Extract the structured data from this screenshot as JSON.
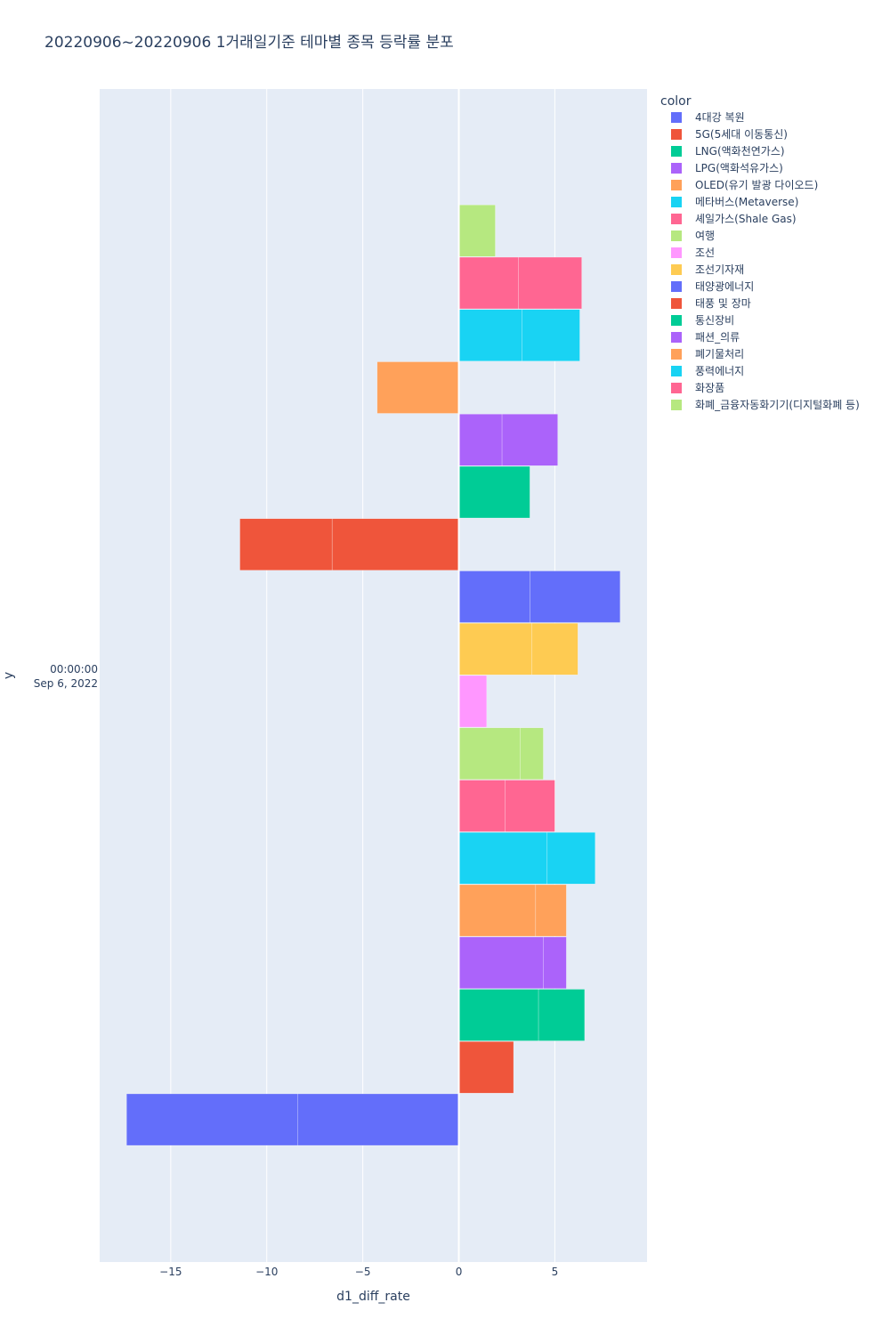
{
  "chart_data": {
    "type": "bar",
    "orientation": "horizontal",
    "barmode": "stack",
    "title": "20220906~20220906 1거래일기준 테마별 종목 등락률 분포",
    "xlabel": "d1_diff_rate",
    "ylabel": "y",
    "y_tick_label": [
      "00:00:00",
      "Sep 6, 2022"
    ],
    "xlim": [
      -18.7,
      9.8
    ],
    "x_ticks": [
      {
        "value": -15,
        "label": "−15"
      },
      {
        "value": -10,
        "label": "−10"
      },
      {
        "value": -5,
        "label": "−5"
      },
      {
        "value": 0,
        "label": "0"
      },
      {
        "value": 5,
        "label": "5"
      }
    ],
    "grid": true,
    "legend_title": "color",
    "legend_position": "top-right",
    "series": [
      {
        "name": "4대강 복원",
        "color": "#636efa",
        "segments": [
          -8.4,
          -8.9
        ]
      },
      {
        "name": "5G(5세대 이동통신)",
        "color": "#EF553B",
        "segments": [
          2.85
        ]
      },
      {
        "name": "LNG(액화천연가스)",
        "color": "#00cc96",
        "segments": [
          4.15,
          2.4
        ]
      },
      {
        "name": "LPG(액화석유가스)",
        "color": "#ab63fa",
        "segments": [
          4.4,
          1.2
        ]
      },
      {
        "name": "OLED(유기 발광 다이오드)",
        "color": "#FFA15A",
        "segments": [
          4.0,
          1.6
        ]
      },
      {
        "name": "메타버스(Metaverse)",
        "color": "#19d3f3",
        "segments": [
          4.6,
          2.5
        ]
      },
      {
        "name": "셰일가스(Shale Gas)",
        "color": "#FF6692",
        "segments": [
          2.4,
          2.6
        ]
      },
      {
        "name": "여행",
        "color": "#B6E880",
        "segments": [
          3.2,
          1.2
        ]
      },
      {
        "name": "조선",
        "color": "#FF97FF",
        "segments": [
          1.45
        ]
      },
      {
        "name": "조선기자재",
        "color": "#FECB52",
        "segments": [
          3.8,
          2.4
        ]
      },
      {
        "name": "태양광에너지",
        "color": "#636efa",
        "segments": [
          3.7,
          4.7
        ]
      },
      {
        "name": "태풍 및 장마",
        "color": "#EF553B",
        "segments": [
          -6.6,
          -4.8
        ]
      },
      {
        "name": "통신장비",
        "color": "#00cc96",
        "segments": [
          3.7
        ]
      },
      {
        "name": "패션_의류",
        "color": "#ab63fa",
        "segments": [
          2.25,
          2.9
        ]
      },
      {
        "name": "폐기물처리",
        "color": "#FFA15A",
        "segments": [
          -4.25
        ]
      },
      {
        "name": "풍력에너지",
        "color": "#19d3f3",
        "segments": [
          3.3,
          3.0
        ]
      },
      {
        "name": "화장품",
        "color": "#FF6692",
        "segments": [
          3.1,
          3.3
        ]
      },
      {
        "name": "화폐_금융자동화기기(디지털화폐 등)",
        "color": "#B6E880",
        "segments": [
          1.9
        ]
      }
    ]
  }
}
